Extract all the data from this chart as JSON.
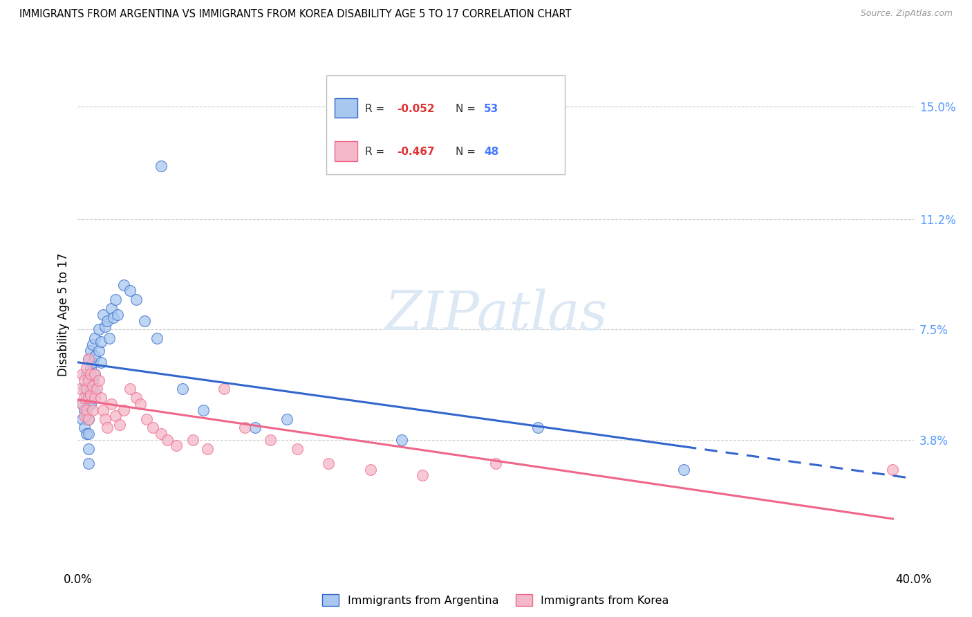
{
  "title": "IMMIGRANTS FROM ARGENTINA VS IMMIGRANTS FROM KOREA DISABILITY AGE 5 TO 17 CORRELATION CHART",
  "source": "Source: ZipAtlas.com",
  "ylabel": "Disability Age 5 to 17",
  "xlim": [
    0.0,
    0.4
  ],
  "ylim": [
    -0.005,
    0.165
  ],
  "right_yticks": [
    0.038,
    0.075,
    0.112,
    0.15
  ],
  "right_yticklabels": [
    "3.8%",
    "7.5%",
    "11.2%",
    "15.0%"
  ],
  "color_argentina": "#a8c8f0",
  "color_korea": "#f5b8c8",
  "color_line_argentina": "#3366cc",
  "color_line_korea": "#ee6688",
  "watermark_color": "#dde8f5",
  "argentina_x": [
    0.002,
    0.002,
    0.003,
    0.003,
    0.003,
    0.004,
    0.004,
    0.004,
    0.004,
    0.005,
    0.005,
    0.005,
    0.005,
    0.005,
    0.005,
    0.005,
    0.005,
    0.006,
    0.006,
    0.006,
    0.006,
    0.007,
    0.007,
    0.007,
    0.008,
    0.008,
    0.008,
    0.008,
    0.01,
    0.01,
    0.011,
    0.011,
    0.012,
    0.013,
    0.014,
    0.015,
    0.016,
    0.017,
    0.018,
    0.019,
    0.022,
    0.025,
    0.028,
    0.032,
    0.038,
    0.05,
    0.06,
    0.085,
    0.1,
    0.155,
    0.22,
    0.29,
    0.04
  ],
  "argentina_y": [
    0.05,
    0.045,
    0.055,
    0.048,
    0.042,
    0.06,
    0.052,
    0.046,
    0.04,
    0.065,
    0.06,
    0.055,
    0.05,
    0.045,
    0.04,
    0.035,
    0.03,
    0.068,
    0.062,
    0.056,
    0.05,
    0.07,
    0.064,
    0.058,
    0.072,
    0.066,
    0.06,
    0.054,
    0.075,
    0.068,
    0.071,
    0.064,
    0.08,
    0.076,
    0.078,
    0.072,
    0.082,
    0.079,
    0.085,
    0.08,
    0.09,
    0.088,
    0.085,
    0.078,
    0.072,
    0.055,
    0.048,
    0.042,
    0.045,
    0.038,
    0.042,
    0.028,
    0.13
  ],
  "korea_x": [
    0.001,
    0.002,
    0.002,
    0.003,
    0.003,
    0.003,
    0.004,
    0.004,
    0.004,
    0.005,
    0.005,
    0.005,
    0.005,
    0.006,
    0.006,
    0.007,
    0.007,
    0.008,
    0.008,
    0.009,
    0.01,
    0.011,
    0.012,
    0.013,
    0.014,
    0.016,
    0.018,
    0.02,
    0.022,
    0.025,
    0.028,
    0.03,
    0.033,
    0.036,
    0.04,
    0.043,
    0.047,
    0.055,
    0.062,
    0.07,
    0.08,
    0.092,
    0.105,
    0.12,
    0.14,
    0.165,
    0.2,
    0.39
  ],
  "korea_y": [
    0.055,
    0.06,
    0.05,
    0.058,
    0.052,
    0.046,
    0.062,
    0.055,
    0.048,
    0.065,
    0.058,
    0.052,
    0.045,
    0.06,
    0.053,
    0.056,
    0.048,
    0.06,
    0.052,
    0.055,
    0.058,
    0.052,
    0.048,
    0.045,
    0.042,
    0.05,
    0.046,
    0.043,
    0.048,
    0.055,
    0.052,
    0.05,
    0.045,
    0.042,
    0.04,
    0.038,
    0.036,
    0.038,
    0.035,
    0.055,
    0.042,
    0.038,
    0.035,
    0.03,
    0.028,
    0.026,
    0.03,
    0.028
  ]
}
